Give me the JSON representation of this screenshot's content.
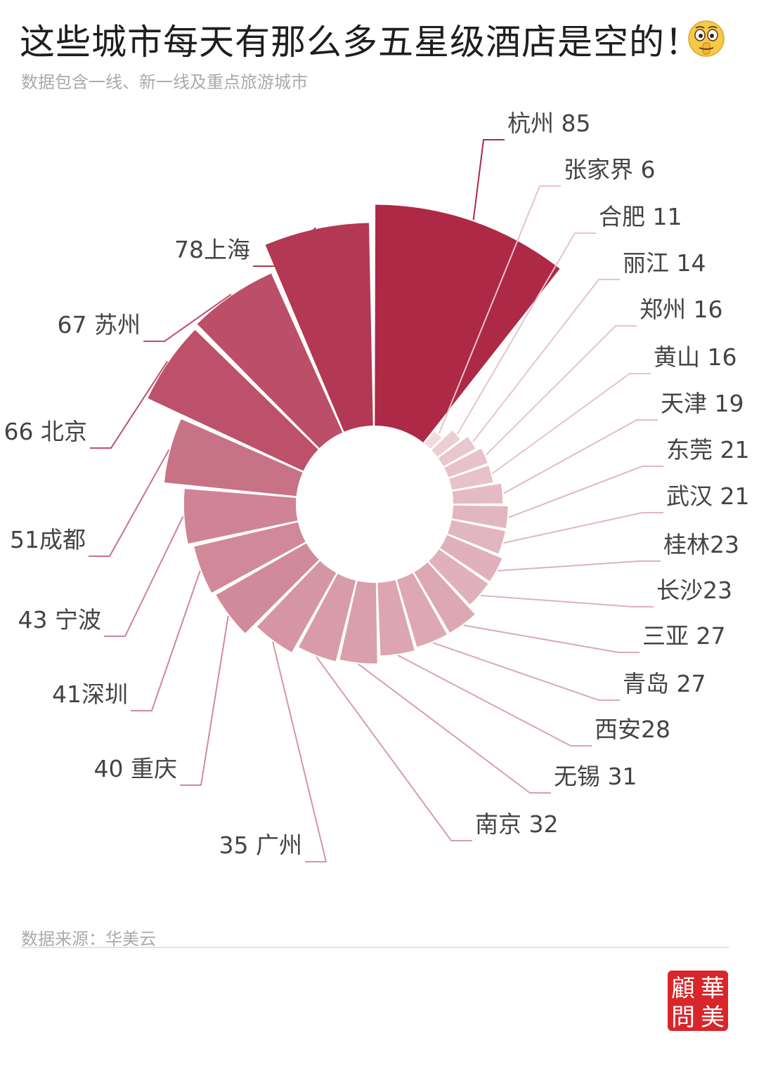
{
  "header": {
    "title": "这些城市每天有那么多五星级酒店是空的！",
    "subtitle": "数据包含一线、新一线及重点旅游城市",
    "emoji_icon": "shushing-face-icon"
  },
  "footer": {
    "source": "数据来源：华美云",
    "logo_chars": [
      "華",
      "美",
      "顧",
      "問"
    ]
  },
  "chart_data": {
    "type": "pie",
    "variant": "nightingale-rose-donut",
    "categories": [
      "杭州",
      "张家界",
      "合肥",
      "丽江",
      "郑州",
      "黄山",
      "天津",
      "东莞",
      "武汉",
      "桂林",
      "长沙",
      "三亚",
      "青岛",
      "西安",
      "无锡",
      "南京",
      "广州",
      "重庆",
      "深圳",
      "宁波",
      "成都",
      "北京",
      "苏州",
      "上海"
    ],
    "values": [
      85,
      6,
      11,
      14,
      16,
      16,
      19,
      21,
      21,
      23,
      23,
      27,
      27,
      28,
      31,
      32,
      35,
      40,
      41,
      43,
      51,
      66,
      67,
      78
    ],
    "labels": [
      "杭州 85",
      "张家界 6",
      "合肥 11",
      "丽江 14",
      "郑州 16",
      "黄山 16",
      "天津 19",
      "东莞 21",
      "武汉 21",
      "桂林23",
      "长沙23",
      "三亚 27",
      "青岛 27",
      "西安28",
      "无锡 31",
      "南京 32",
      "35 广州",
      "40 重庆",
      "41深圳",
      "43 宁波",
      "51成都",
      "66 北京",
      "67 苏州",
      "78上海"
    ],
    "colors": {
      "high": "#ad2946",
      "low": "#f7eef0",
      "line": "#c65a72",
      "text": "#444444"
    }
  }
}
